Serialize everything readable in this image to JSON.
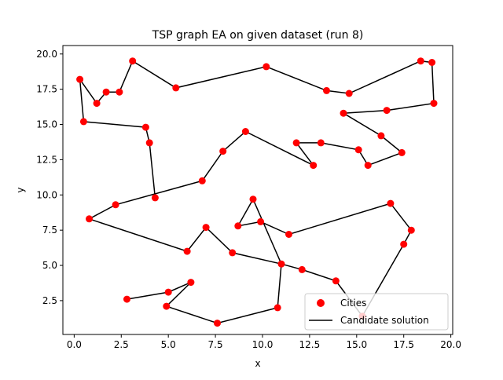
{
  "chart_data": {
    "type": "scatter",
    "title": "TSP graph EA on given dataset (run 8)",
    "xlabel": "x",
    "ylabel": "y",
    "xlim": [
      -0.6,
      20.1
    ],
    "ylim": [
      0.1,
      20.6
    ],
    "xticks": [
      0.0,
      2.5,
      5.0,
      7.5,
      10.0,
      12.5,
      15.0,
      17.5,
      20.0
    ],
    "xtick_labels": [
      "0.0",
      "2.5",
      "5.0",
      "7.5",
      "10.0",
      "12.5",
      "15.0",
      "17.5",
      "20.0"
    ],
    "yticks": [
      2.5,
      5.0,
      7.5,
      10.0,
      12.5,
      15.0,
      17.5,
      20.0
    ],
    "ytick_labels": [
      "2.5",
      "5.0",
      "7.5",
      "10.0",
      "12.5",
      "15.0",
      "17.5",
      "20.0"
    ],
    "grid": false,
    "legend_position": "lower-right",
    "series": [
      {
        "name": "Cities",
        "kind": "scatter",
        "color": "#ff0000",
        "points": [
          [
            0.3,
            18.2
          ],
          [
            1.2,
            16.5
          ],
          [
            1.7,
            17.3
          ],
          [
            2.4,
            17.3
          ],
          [
            3.1,
            19.5
          ],
          [
            5.4,
            17.6
          ],
          [
            10.2,
            19.1
          ],
          [
            13.4,
            17.4
          ],
          [
            14.6,
            17.2
          ],
          [
            18.4,
            19.5
          ],
          [
            19.0,
            19.4
          ],
          [
            19.1,
            16.5
          ],
          [
            16.6,
            16.0
          ],
          [
            14.3,
            15.8
          ],
          [
            16.3,
            14.2
          ],
          [
            17.4,
            13.0
          ],
          [
            15.6,
            12.1
          ],
          [
            15.1,
            13.2
          ],
          [
            13.1,
            13.7
          ],
          [
            11.8,
            13.7
          ],
          [
            12.7,
            12.1
          ],
          [
            9.1,
            14.5
          ],
          [
            7.9,
            13.1
          ],
          [
            6.8,
            11.0
          ],
          [
            2.2,
            9.3
          ],
          [
            0.8,
            8.3
          ],
          [
            6.0,
            6.0
          ],
          [
            7.0,
            7.7
          ],
          [
            8.4,
            5.9
          ],
          [
            11.0,
            5.1
          ],
          [
            12.1,
            4.7
          ],
          [
            13.9,
            3.9
          ],
          [
            15.3,
            1.4
          ],
          [
            17.5,
            6.5
          ],
          [
            17.9,
            7.5
          ],
          [
            16.8,
            9.4
          ],
          [
            11.4,
            7.2
          ],
          [
            9.9,
            8.1
          ],
          [
            8.7,
            7.8
          ],
          [
            9.5,
            9.7
          ],
          [
            10.8,
            2.0
          ],
          [
            7.6,
            0.9
          ],
          [
            4.9,
            2.1
          ],
          [
            6.2,
            3.8
          ],
          [
            5.0,
            3.1
          ],
          [
            2.8,
            2.6
          ],
          [
            0.5,
            15.2
          ],
          [
            3.8,
            14.8
          ],
          [
            4.0,
            13.7
          ],
          [
            4.3,
            9.8
          ]
        ]
      },
      {
        "name": "Candidate solution",
        "kind": "line",
        "color": "#000000",
        "path": [
          [
            0.3,
            18.2
          ],
          [
            1.2,
            16.5
          ],
          [
            1.7,
            17.3
          ],
          [
            2.4,
            17.3
          ],
          [
            3.1,
            19.5
          ],
          [
            5.4,
            17.6
          ],
          [
            10.2,
            19.1
          ],
          [
            13.4,
            17.4
          ],
          [
            14.6,
            17.2
          ],
          [
            18.4,
            19.5
          ],
          [
            19.0,
            19.4
          ],
          [
            19.1,
            16.5
          ],
          [
            16.6,
            16.0
          ],
          [
            14.3,
            15.8
          ],
          [
            16.3,
            14.2
          ],
          [
            17.4,
            13.0
          ],
          [
            15.6,
            12.1
          ],
          [
            15.1,
            13.2
          ],
          [
            13.1,
            13.7
          ],
          [
            11.8,
            13.7
          ],
          [
            12.7,
            12.1
          ],
          [
            9.1,
            14.5
          ],
          [
            7.9,
            13.1
          ],
          [
            6.8,
            11.0
          ],
          [
            2.2,
            9.3
          ],
          [
            0.8,
            8.3
          ],
          [
            6.0,
            6.0
          ],
          [
            7.0,
            7.7
          ],
          [
            8.4,
            5.9
          ],
          [
            11.0,
            5.1
          ],
          [
            12.1,
            4.7
          ],
          [
            13.9,
            3.9
          ],
          [
            15.3,
            1.4
          ],
          [
            17.5,
            6.5
          ],
          [
            17.9,
            7.5
          ],
          [
            16.8,
            9.4
          ],
          [
            11.4,
            7.2
          ],
          [
            9.9,
            8.1
          ],
          [
            8.7,
            7.8
          ],
          [
            9.5,
            9.7
          ],
          [
            11.0,
            5.1
          ],
          [
            10.8,
            2.0
          ],
          [
            7.6,
            0.9
          ],
          [
            4.9,
            2.1
          ],
          [
            6.2,
            3.8
          ],
          [
            5.0,
            3.1
          ],
          [
            2.8,
            2.6
          ]
        ],
        "path_extra": [
          [
            0.3,
            18.2
          ],
          [
            0.5,
            15.2
          ],
          [
            3.8,
            14.8
          ],
          [
            4.0,
            13.7
          ],
          [
            4.3,
            9.8
          ]
        ]
      }
    ]
  }
}
